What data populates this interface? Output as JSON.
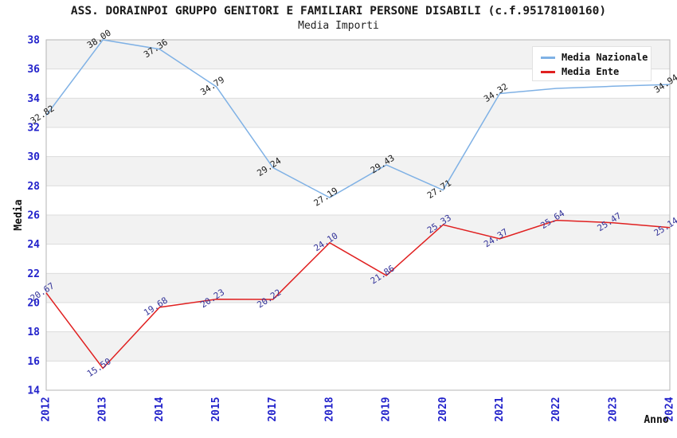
{
  "chart_data": {
    "type": "line",
    "title": "ASS. DORAINPOI GRUPPO GENITORI E FAMILIARI PERSONE DISABILI (c.f.95178100160)",
    "subtitle": "Media Importi",
    "xlabel": "Anno",
    "ylabel": "Media",
    "x": [
      "2012",
      "2013",
      "2014",
      "2015",
      "2017",
      "2018",
      "2019",
      "2020",
      "2021",
      "2022",
      "2023",
      "2024"
    ],
    "ylim": [
      14,
      38
    ],
    "ytick_step": 2,
    "grid": "horizontal",
    "banded_background": true,
    "legend_position": "top-right",
    "series": [
      {
        "name": "Media Nazionale",
        "color": "#7fb1e5",
        "label_color": "#1a1a1a",
        "values": [
          32.82,
          38.0,
          37.36,
          34.79,
          29.24,
          27.19,
          29.43,
          27.71,
          34.32,
          34.67,
          34.82,
          34.94
        ],
        "labels": [
          "32.82",
          "38.00",
          "37.36",
          "34.79",
          "29.24",
          "27.19",
          "29.43",
          "27.71",
          "34.32",
          null,
          null,
          "34.94"
        ]
      },
      {
        "name": "Media Ente",
        "color": "#e02020",
        "label_color": "#333399",
        "values": [
          20.67,
          15.5,
          19.68,
          20.23,
          20.22,
          24.1,
          21.86,
          25.33,
          24.37,
          25.64,
          25.47,
          25.14
        ],
        "labels": [
          "20.67",
          "15.50",
          "19.68",
          "20.23",
          "20.22",
          "24.10",
          "21.86",
          "25.33",
          "24.37",
          "25.64",
          "25.47",
          "25.14"
        ]
      }
    ],
    "colors": {
      "tick_label": "#2323cb",
      "axis_title": "#111111",
      "band_fill": "#f2f2f2",
      "grid_line": "#dcdcdc",
      "plot_border": "#b4b4b4"
    }
  }
}
